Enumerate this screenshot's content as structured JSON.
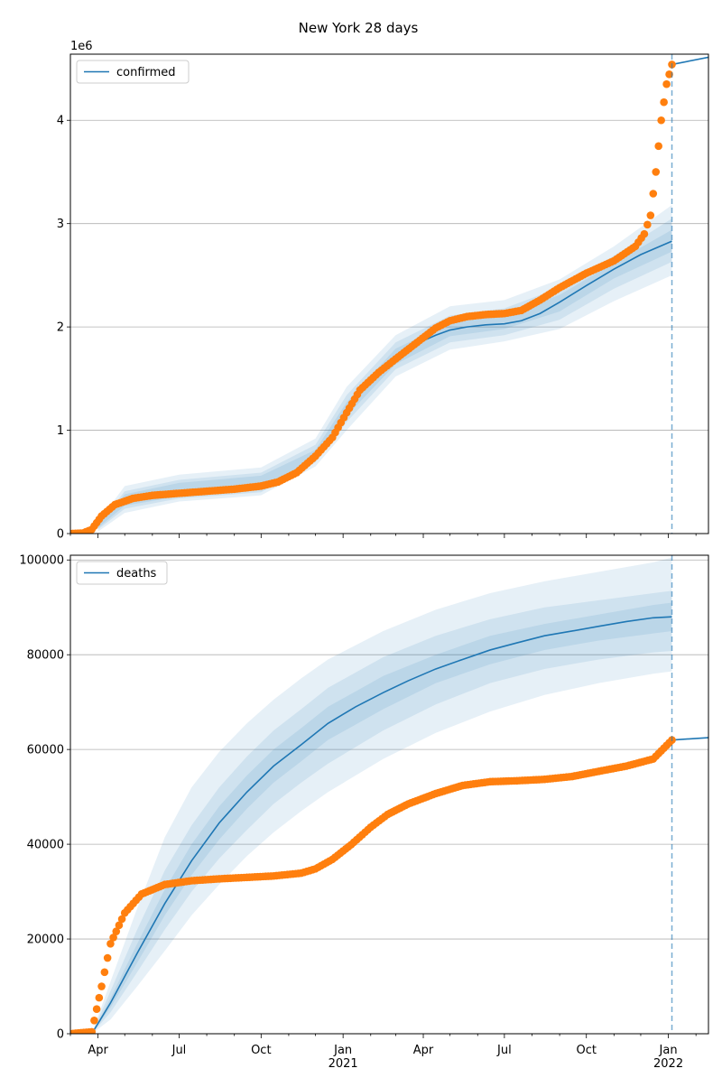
{
  "figure": {
    "suptitle": "New York 28 days"
  },
  "colors": {
    "model": "#1f77b4",
    "observed": "#ff7f0e",
    "grid": "#b0b0b0",
    "band": "#1f77b4"
  },
  "chart_data": [
    {
      "type": "line",
      "name": "confirmed",
      "legend": [
        "confirmed"
      ],
      "legend_loc": "upper left",
      "yaxis_offset_label": "1e6",
      "grid": "y",
      "x_range": [
        "2020-03-01",
        "2022-02-15"
      ],
      "ylim": [
        0,
        4640000
      ],
      "y_ticks": [
        0,
        1000000,
        2000000,
        3000000,
        4000000
      ],
      "y_tick_labels": [
        "0",
        "1",
        "2",
        "3",
        "4"
      ],
      "forecast_start": "2022-01-05",
      "series": [
        {
          "name": "confirmed",
          "role": "model median",
          "x": [
            "2020-03-01",
            "2020-03-20",
            "2020-04-05",
            "2020-04-20",
            "2020-05-10",
            "2020-06-01",
            "2020-07-01",
            "2020-08-01",
            "2020-09-01",
            "2020-10-01",
            "2020-10-20",
            "2020-11-10",
            "2020-12-01",
            "2020-12-20",
            "2021-01-05",
            "2021-01-20",
            "2021-02-10",
            "2021-03-01",
            "2021-03-25",
            "2021-04-15",
            "2021-05-01",
            "2021-05-20",
            "2021-06-10",
            "2021-07-01",
            "2021-07-20",
            "2021-08-10",
            "2021-09-01",
            "2021-10-01",
            "2021-11-01",
            "2021-12-01",
            "2022-01-05"
          ],
          "y": [
            0,
            10000,
            150000,
            260000,
            330000,
            360000,
            380000,
            400000,
            420000,
            450000,
            490000,
            580000,
            760000,
            950000,
            1190000,
            1370000,
            1560000,
            1700000,
            1840000,
            1920000,
            1970000,
            2000000,
            2020000,
            2030000,
            2060000,
            2130000,
            2240000,
            2400000,
            2560000,
            2700000,
            2830000
          ]
        },
        {
          "name": "projection",
          "role": "model continuation",
          "x": [
            "2022-01-05",
            "2022-02-15"
          ],
          "y": [
            4540000,
            4610000
          ]
        },
        {
          "name": "observed",
          "role": "observed points",
          "x": [
            "2020-03-01",
            "2020-03-15",
            "2020-03-25",
            "2020-04-05",
            "2020-04-20",
            "2020-05-10",
            "2020-06-01",
            "2020-07-01",
            "2020-08-01",
            "2020-09-01",
            "2020-10-01",
            "2020-10-20",
            "2020-11-10",
            "2020-12-01",
            "2020-12-20",
            "2021-01-05",
            "2021-01-20",
            "2021-02-10",
            "2021-03-01",
            "2021-03-25",
            "2021-04-15",
            "2021-05-01",
            "2021-05-20",
            "2021-06-10",
            "2021-07-01",
            "2021-07-20",
            "2021-08-10",
            "2021-09-01",
            "2021-10-01",
            "2021-11-01",
            "2021-11-25",
            "2021-12-05",
            "2021-12-12",
            "2021-12-18",
            "2021-12-24",
            "2021-12-30",
            "2022-01-05"
          ],
          "y": [
            0,
            5000,
            40000,
            170000,
            280000,
            340000,
            370000,
            390000,
            410000,
            430000,
            460000,
            500000,
            590000,
            750000,
            930000,
            1170000,
            1390000,
            1560000,
            1690000,
            1850000,
            1990000,
            2060000,
            2100000,
            2120000,
            2130000,
            2160000,
            2260000,
            2380000,
            2520000,
            2640000,
            2780000,
            2900000,
            3080000,
            3500000,
            4000000,
            4350000,
            4540000
          ]
        }
      ],
      "bands": [
        {
          "x": [
            "2020-04-01",
            "2020-05-01",
            "2020-07-01",
            "2020-10-01",
            "2020-12-01",
            "2021-01-05",
            "2021-03-01",
            "2021-05-01",
            "2021-07-01",
            "2021-09-01",
            "2021-11-01",
            "2022-01-05"
          ],
          "low": [
            20000,
            200000,
            310000,
            370000,
            650000,
            1000000,
            1520000,
            1780000,
            1860000,
            1980000,
            2250000,
            2500000
          ],
          "high": [
            110000,
            460000,
            570000,
            640000,
            920000,
            1420000,
            1920000,
            2200000,
            2260000,
            2460000,
            2780000,
            3180000
          ]
        },
        {
          "x": [
            "2020-04-01",
            "2020-05-01",
            "2020-07-01",
            "2020-10-01",
            "2020-12-01",
            "2021-01-05",
            "2021-03-01",
            "2021-05-01",
            "2021-07-01",
            "2021-09-01",
            "2021-11-01",
            "2022-01-05"
          ],
          "low": [
            40000,
            240000,
            340000,
            400000,
            690000,
            1080000,
            1590000,
            1850000,
            1920000,
            2070000,
            2370000,
            2630000
          ],
          "high": [
            90000,
            410000,
            520000,
            590000,
            860000,
            1340000,
            1850000,
            2110000,
            2180000,
            2380000,
            2690000,
            3050000
          ]
        },
        {
          "x": [
            "2020-04-01",
            "2020-05-01",
            "2020-07-01",
            "2020-10-01",
            "2020-12-01",
            "2021-01-05",
            "2021-03-01",
            "2021-05-01",
            "2021-07-01",
            "2021-09-01",
            "2021-11-01",
            "2022-01-05"
          ],
          "low": [
            55000,
            270000,
            360000,
            420000,
            720000,
            1140000,
            1640000,
            1910000,
            1980000,
            2150000,
            2470000,
            2730000
          ],
          "high": [
            75000,
            380000,
            490000,
            560000,
            810000,
            1270000,
            1790000,
            2040000,
            2110000,
            2310000,
            2620000,
            2940000
          ]
        }
      ]
    },
    {
      "type": "line",
      "name": "deaths",
      "legend": [
        "deaths"
      ],
      "legend_loc": "upper left",
      "grid": "y",
      "x_range": [
        "2020-03-01",
        "2022-02-15"
      ],
      "ylim": [
        0,
        101000
      ],
      "y_ticks": [
        0,
        20000,
        40000,
        60000,
        80000,
        100000
      ],
      "y_tick_labels": [
        "0",
        "20000",
        "40000",
        "60000",
        "80000",
        "100000"
      ],
      "x_tick_labels": [
        {
          "date": "2020-04-01",
          "label": "Apr"
        },
        {
          "date": "2020-07-01",
          "label": "Jul"
        },
        {
          "date": "2020-10-01",
          "label": "Oct"
        },
        {
          "date": "2021-01-01",
          "label": "Jan",
          "year": "2021"
        },
        {
          "date": "2021-04-01",
          "label": "Apr"
        },
        {
          "date": "2021-07-01",
          "label": "Jul"
        },
        {
          "date": "2021-10-01",
          "label": "Oct"
        },
        {
          "date": "2022-01-01",
          "label": "Jan",
          "year": "2022"
        }
      ],
      "forecast_start": "2022-01-05",
      "series": [
        {
          "name": "deaths",
          "role": "model median",
          "x": [
            "2020-03-25",
            "2020-04-15",
            "2020-05-15",
            "2020-06-15",
            "2020-07-15",
            "2020-08-15",
            "2020-09-15",
            "2020-10-15",
            "2020-11-15",
            "2020-12-15",
            "2021-01-15",
            "2021-02-15",
            "2021-03-15",
            "2021-04-15",
            "2021-05-15",
            "2021-06-15",
            "2021-07-15",
            "2021-08-15",
            "2021-09-15",
            "2021-10-15",
            "2021-11-15",
            "2021-12-15",
            "2022-01-05"
          ],
          "y": [
            0,
            6500,
            17000,
            27500,
            36500,
            44500,
            51000,
            56500,
            61000,
            65500,
            69000,
            72000,
            74500,
            77000,
            79000,
            81000,
            82500,
            84000,
            85000,
            86000,
            87000,
            87800,
            88000
          ]
        },
        {
          "name": "projection",
          "role": "model continuation",
          "x": [
            "2022-01-05",
            "2022-02-15"
          ],
          "y": [
            62000,
            62500
          ]
        },
        {
          "name": "observed",
          "role": "observed points",
          "x": [
            "2020-03-01",
            "2020-03-25",
            "2020-04-05",
            "2020-04-15",
            "2020-05-01",
            "2020-05-20",
            "2020-06-15",
            "2020-07-15",
            "2020-08-15",
            "2020-09-15",
            "2020-10-15",
            "2020-11-15",
            "2020-12-01",
            "2020-12-20",
            "2021-01-10",
            "2021-02-01",
            "2021-02-20",
            "2021-03-15",
            "2021-04-15",
            "2021-05-15",
            "2021-06-15",
            "2021-07-15",
            "2021-08-15",
            "2021-09-15",
            "2021-10-15",
            "2021-11-15",
            "2021-12-15",
            "2022-01-05"
          ],
          "y": [
            0,
            400,
            10000,
            19000,
            25500,
            29500,
            31500,
            32300,
            32700,
            33000,
            33300,
            33900,
            34800,
            36800,
            39900,
            43600,
            46300,
            48500,
            50700,
            52400,
            53200,
            53400,
            53700,
            54300,
            55400,
            56500,
            58000,
            62000
          ]
        }
      ],
      "bands": [
        {
          "x": [
            "2020-03-25",
            "2020-04-15",
            "2020-05-15",
            "2020-06-15",
            "2020-07-15",
            "2020-08-15",
            "2020-09-15",
            "2020-10-15",
            "2020-11-15",
            "2020-12-15",
            "2021-02-15",
            "2021-04-15",
            "2021-06-15",
            "2021-08-15",
            "2021-10-15",
            "2021-12-15",
            "2022-01-05"
          ],
          "low": [
            0,
            3000,
            10000,
            17500,
            25000,
            31500,
            37500,
            42500,
            47000,
            51000,
            58000,
            63500,
            68000,
            71500,
            74000,
            76000,
            76500
          ],
          "high": [
            0,
            11000,
            26500,
            41500,
            52000,
            59500,
            65500,
            70500,
            75000,
            79000,
            85000,
            89500,
            93000,
            95500,
            97500,
            99500,
            100500
          ]
        },
        {
          "x": [
            "2020-03-25",
            "2020-04-15",
            "2020-05-15",
            "2020-06-15",
            "2020-07-15",
            "2020-08-15",
            "2020-09-15",
            "2020-10-15",
            "2020-11-15",
            "2020-12-15",
            "2021-02-15",
            "2021-04-15",
            "2021-06-15",
            "2021-08-15",
            "2021-10-15",
            "2021-12-15",
            "2022-01-05"
          ],
          "low": [
            0,
            4500,
            13000,
            22000,
            30000,
            37000,
            43000,
            48500,
            53000,
            57000,
            64000,
            69500,
            74000,
            77000,
            79000,
            80500,
            80800
          ],
          "high": [
            0,
            9000,
            22000,
            34500,
            44000,
            52000,
            58500,
            64000,
            68500,
            73000,
            79500,
            84000,
            87500,
            90000,
            91500,
            93000,
            93500
          ]
        },
        {
          "x": [
            "2020-03-25",
            "2020-04-15",
            "2020-05-15",
            "2020-06-15",
            "2020-07-15",
            "2020-08-15",
            "2020-09-15",
            "2020-10-15",
            "2020-11-15",
            "2020-12-15",
            "2021-02-15",
            "2021-04-15",
            "2021-06-15",
            "2021-08-15",
            "2021-10-15",
            "2021-12-15",
            "2022-01-05"
          ],
          "low": [
            0,
            5500,
            15000,
            25000,
            33500,
            41000,
            47500,
            53000,
            57500,
            62000,
            68500,
            74000,
            78000,
            81000,
            83000,
            84500,
            85000
          ],
          "high": [
            0,
            7500,
            19000,
            30500,
            40000,
            48000,
            54500,
            60000,
            64500,
            69000,
            75500,
            80000,
            84000,
            86500,
            88500,
            90500,
            91000
          ]
        }
      ]
    }
  ]
}
